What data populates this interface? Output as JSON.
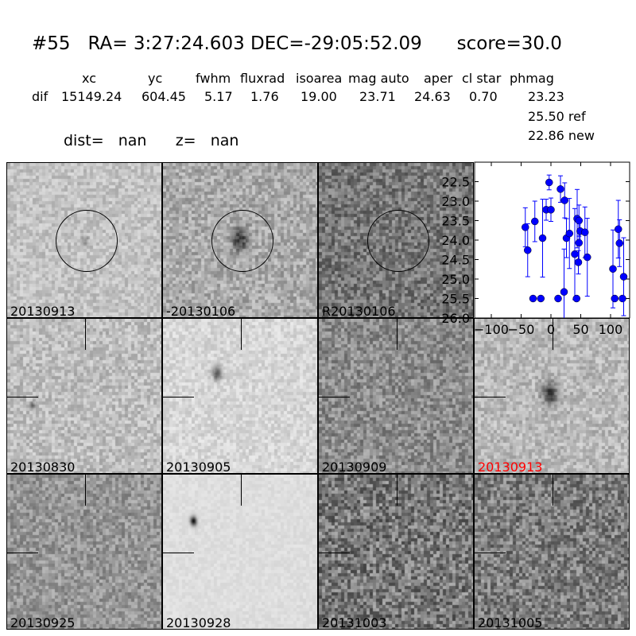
{
  "title": "#55   RA= 3:27:24.603 DEC=-29:05:52.09      score=30.0",
  "columns": [
    "xc",
    "yc",
    "fwhm",
    "fluxrad",
    "isoarea",
    "mag auto",
    "aper",
    "cl star",
    "phmag"
  ],
  "row_label": "dif",
  "values": [
    "15149.24",
    "604.45",
    "5.17",
    "1.76",
    "19.00",
    "23.71",
    "24.63",
    "0.70",
    "23.23"
  ],
  "phmag_extra": [
    "25.50 ref",
    "22.86 new"
  ],
  "dist_line": "dist=   nan      z=   nan",
  "panels": [
    {
      "label": "20130913",
      "marker": "circle"
    },
    {
      "label": "-20130106",
      "marker": "circle"
    },
    {
      "label": "R20130106",
      "marker": "circle"
    },
    {
      "label": "20130830",
      "marker": "crosshair"
    },
    {
      "label": "20130905",
      "marker": "crosshair"
    },
    {
      "label": "20130909",
      "marker": "crosshair"
    },
    {
      "label": "20130913",
      "marker": "crosshair",
      "color": "#ff0000"
    },
    {
      "label": "20130925",
      "marker": "crosshair"
    },
    {
      "label": "20130928",
      "marker": "crosshair"
    },
    {
      "label": "20131003",
      "marker": "crosshair"
    },
    {
      "label": "20131005",
      "marker": "crosshair"
    }
  ],
  "chart_data": {
    "type": "scatter",
    "xlim": [
      -128,
      132
    ],
    "ylim": [
      26.0,
      22.0
    ],
    "y_inverted": true,
    "xticks": [
      -100,
      -50,
      0,
      50,
      100
    ],
    "yticks": [
      22.5,
      23.0,
      23.5,
      24.0,
      24.5,
      25.0,
      25.5,
      26.0
    ],
    "xtick_labels": [
      "−100",
      "−50",
      "0",
      "50",
      "100"
    ],
    "ytick_labels": [
      "22.5",
      "23.0",
      "23.5",
      "24.0",
      "24.5",
      "25.0",
      "25.5",
      "26.0"
    ],
    "color": "#0000ff",
    "points": [
      [
        -43,
        23.67,
        0.5
      ],
      [
        -39,
        24.26,
        0.68
      ],
      [
        -27,
        23.52,
        0.52
      ],
      [
        -30,
        25.5,
        0.05
      ],
      [
        -17,
        25.5,
        0.05
      ],
      [
        -14,
        23.95,
        1.0
      ],
      [
        -8,
        23.22,
        0.27
      ],
      [
        -3,
        22.52,
        0.19
      ],
      [
        0,
        23.22,
        0.3
      ],
      [
        12,
        25.5,
        0.05
      ],
      [
        16,
        22.69,
        0.34
      ],
      [
        22,
        25.33,
        1.1
      ],
      [
        23,
        22.98,
        0.45
      ],
      [
        26,
        23.95,
        0.5
      ],
      [
        31,
        23.83,
        0.9
      ],
      [
        40,
        24.36,
        1.17
      ],
      [
        43,
        25.5,
        0.05
      ],
      [
        44,
        23.45,
        0.75
      ],
      [
        46,
        24.57,
        0.3
      ],
      [
        47,
        23.5,
        0.4
      ],
      [
        47,
        24.07,
        0.55
      ],
      [
        49,
        23.77,
        0.3
      ],
      [
        57,
        23.8,
        0.65
      ],
      [
        61,
        24.44,
        1.0
      ],
      [
        104,
        24.74,
        1.0
      ],
      [
        107,
        25.5,
        0.05
      ],
      [
        113,
        23.72,
        0.74
      ],
      [
        115,
        24.08,
        0.6
      ],
      [
        120,
        25.5,
        0.05
      ],
      [
        122,
        24.94,
        1.0
      ]
    ]
  }
}
